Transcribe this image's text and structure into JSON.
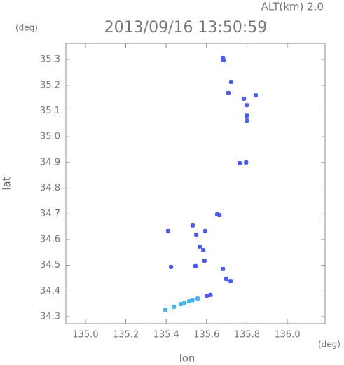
{
  "chart_data": {
    "type": "scatter",
    "title": "2013/09/16 13:50:59",
    "subtitle": "ALT(km) 2.0",
    "y_unit": "(deg)",
    "x_unit": "(deg)",
    "xlabel": "lon",
    "ylabel": "lat",
    "xlim": [
      134.903,
      136.1875
    ],
    "ylim": [
      34.273,
      35.363
    ],
    "xticks": [
      {
        "value": 135,
        "label": "135.0"
      },
      135.2,
      135.4,
      135.6,
      135.8,
      {
        "value": 136,
        "label": "136.0"
      }
    ],
    "yticks": [
      34.3,
      34.4,
      34.5,
      34.6,
      34.7,
      34.8,
      34.9,
      {
        "value": 35,
        "label": "35.0"
      },
      35.1,
      35.2,
      35.3
    ],
    "series": [
      {
        "color": "#4a5cf0",
        "x": [
          135.681,
          135.684,
          135.722,
          135.708,
          135.785,
          135.844,
          135.799,
          135.799,
          135.799,
          135.764,
          135.796,
          135.653,
          135.664,
          135.41,
          135.531,
          135.549,
          135.594,
          135.566,
          135.584,
          135.59,
          135.545,
          135.424,
          135.681,
          135.698,
          135.719,
          135.601,
          135.62
        ],
        "values": [
          35.306,
          35.298,
          35.213,
          35.17,
          35.148,
          35.161,
          35.123,
          35.082,
          35.063,
          34.897,
          34.9,
          34.698,
          34.695,
          34.633,
          34.655,
          34.619,
          34.633,
          34.573,
          34.559,
          34.518,
          34.497,
          34.494,
          34.486,
          34.447,
          34.439,
          34.382,
          34.385
        ]
      },
      {
        "color": "#48b4ee",
        "x": [
          135.556,
          135.514,
          135.472,
          135.438,
          135.396,
          135.49,
          135.53
        ],
        "values": [
          34.371,
          34.36,
          34.349,
          34.338,
          34.327,
          34.355,
          34.364
        ]
      }
    ]
  }
}
